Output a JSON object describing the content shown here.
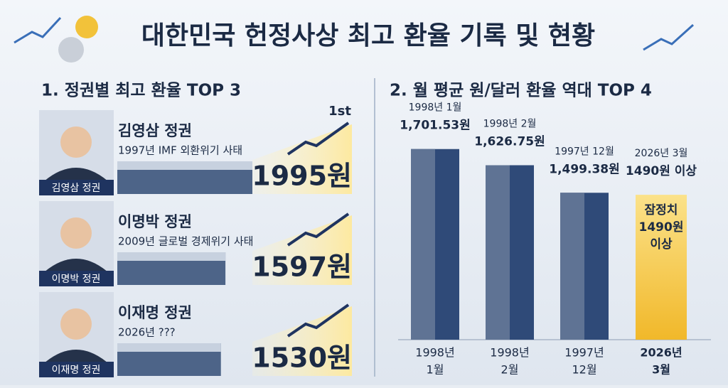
{
  "header": {
    "title": "대한민국 헌정사상 최고 환율 기록 및 현황"
  },
  "section1": {
    "title": "1. 정권별 최고 환율 TOP 3",
    "rank_label": "1st",
    "items": [
      {
        "caption": "김영삼 정권",
        "name": "김영삼 정권",
        "desc": "1997년 IMF 외환위기 사태",
        "value": 1995,
        "value_label": "1995원"
      },
      {
        "caption": "이명박 정권",
        "name": "이명박 정권",
        "desc": "2009년 글로벌 경제위기 사태",
        "value": 1597,
        "value_label": "1597원"
      },
      {
        "caption": "이재명 정권",
        "name": "이재명 정권",
        "desc": "2026년 ???",
        "value": 1530,
        "value_label": "1530원"
      }
    ]
  },
  "chart_data": {
    "type": "bar",
    "title": "2. 월 평균 원/달러 환율 역대 TOP 4",
    "categories": [
      [
        "1998년",
        "1월"
      ],
      [
        "1998년",
        "2월"
      ],
      [
        "1997년",
        "12월"
      ],
      [
        "2026년",
        "3월"
      ]
    ],
    "date_labels": [
      "1998년 1월",
      "1998년 2월",
      "1997년 12월",
      "2026년 3월"
    ],
    "values": [
      1701.53,
      1626.75,
      1499.38,
      1490
    ],
    "value_labels": [
      "1,701.53원",
      "1,626.75원",
      "1,499.38원",
      "1490원 이상"
    ],
    "note": [
      "잠정치",
      "1490원",
      "이상"
    ],
    "colors": [
      "#2f4a78",
      "#2f4a78",
      "#2f4a78",
      "#f5c43a"
    ],
    "ylim": [
      820,
      1750
    ]
  }
}
